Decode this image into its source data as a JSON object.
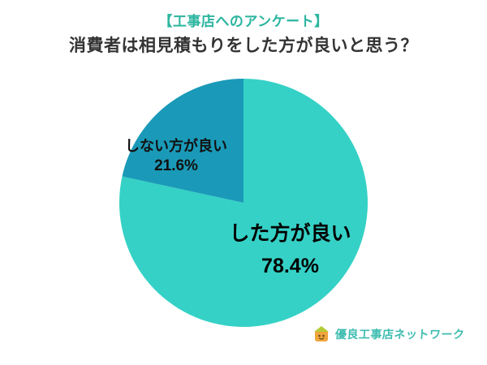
{
  "header": {
    "tag": "【工事店へのアンケート】",
    "title": "消費者は相見積もりをした方が良いと思う？"
  },
  "chart_data": {
    "type": "pie",
    "title": "消費者は相見積もりをした方が良いと思う？",
    "unit": "%",
    "start_angle_deg": -90,
    "direction": "clockwise",
    "legend_position": "none",
    "slices": [
      {
        "id": "major",
        "label": "した方が良い",
        "value": 78.4,
        "color": "#35d1c6"
      },
      {
        "id": "minor",
        "label": "しない方が良い",
        "value": 21.6,
        "color": "#1a9ab8"
      }
    ]
  },
  "labels": {
    "major": {
      "name": "した方が良い",
      "pct": "78.4%"
    },
    "minor": {
      "name": "しない方が良い",
      "pct": "21.6%"
    }
  },
  "logo": {
    "text": "優良工事店ネットワーク",
    "color": "#3fbdb0",
    "icon": "house-mascot-icon",
    "icon_colors": {
      "body": "#f0a43c",
      "accent": "#b5cc38"
    }
  },
  "colors": {
    "background": "#ffffff",
    "tag_text": "#2bb5a0",
    "title_text": "#333333",
    "label_text": "#111111"
  }
}
